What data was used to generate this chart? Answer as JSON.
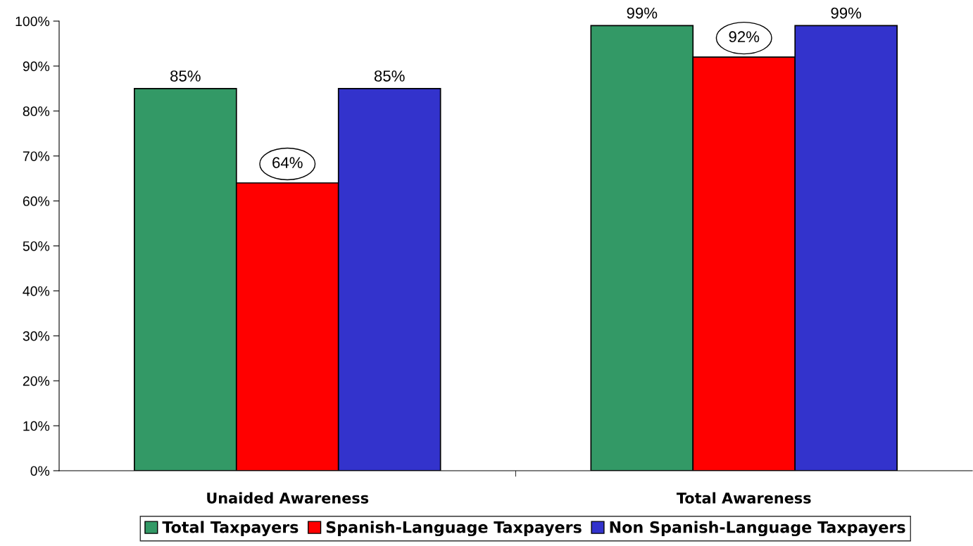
{
  "chart_data": {
    "type": "bar",
    "categories": [
      "Unaided Awareness",
      "Total Awareness"
    ],
    "series": [
      {
        "name": "Total Taxpayers",
        "color": "#339966",
        "values": [
          85,
          99
        ],
        "value_labels": [
          "85%",
          "99%"
        ]
      },
      {
        "name": "Spanish-Language Taxpayers",
        "color": "#ff0000",
        "values": [
          64,
          92
        ]
      },
      {
        "name": "Non Spanish-Language Taxpayers",
        "color": "#3333cc",
        "values": [
          85,
          99
        ],
        "value_labels": [
          "85%",
          "99%"
        ]
      }
    ],
    "annotations": [
      {
        "text": "64%",
        "x": "Unaided Awareness",
        "y": 64
      },
      {
        "text": "92%",
        "x": "Total Awareness",
        "y": 92
      }
    ],
    "ylim": [
      0,
      100
    ],
    "yticks": [
      {
        "value": 0,
        "label": "0%"
      },
      {
        "value": 10,
        "label": "10%"
      },
      {
        "value": 20,
        "label": "20%"
      },
      {
        "value": 30,
        "label": "30%"
      },
      {
        "value": 40,
        "label": "40%"
      },
      {
        "value": 50,
        "label": "50%"
      },
      {
        "value": 60,
        "label": "60%"
      },
      {
        "value": 70,
        "label": "70%"
      },
      {
        "value": 80,
        "label": "80%"
      },
      {
        "value": 90,
        "label": "90%"
      },
      {
        "value": 100,
        "label": "100%"
      }
    ],
    "grid": false,
    "legend": "bottom"
  }
}
